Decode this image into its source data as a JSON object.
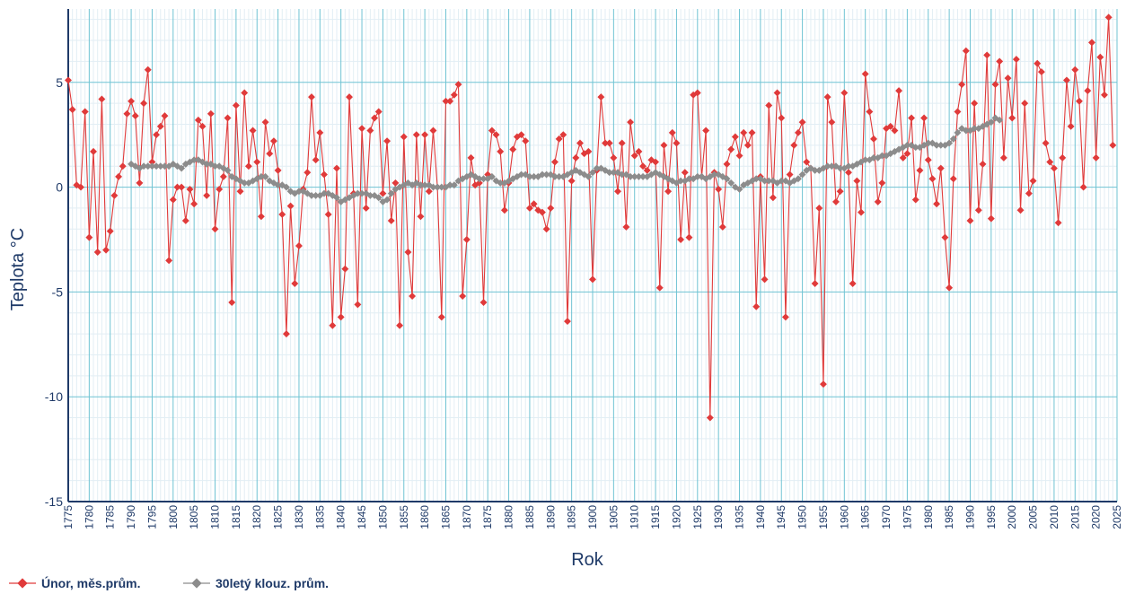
{
  "chart_data": {
    "type": "line",
    "xlabel": "Rok",
    "ylabel": "Teplota °C",
    "xlim": [
      1775,
      2025
    ],
    "ylim": [
      -15,
      8.5
    ],
    "y_ticks": [
      5,
      0,
      -5,
      -10,
      -15
    ],
    "y_tick_labels": [
      "5",
      "0",
      "-5",
      "-10",
      "-15"
    ],
    "x_ticks": [
      1775,
      1780,
      1785,
      1790,
      1795,
      1800,
      1805,
      1810,
      1815,
      1820,
      1825,
      1830,
      1835,
      1840,
      1845,
      1850,
      1855,
      1860,
      1865,
      1870,
      1875,
      1880,
      1885,
      1890,
      1895,
      1900,
      1905,
      1910,
      1915,
      1920,
      1925,
      1930,
      1935,
      1940,
      1945,
      1950,
      1955,
      1960,
      1965,
      1970,
      1975,
      1980,
      1985,
      1990,
      1995,
      2000,
      2005,
      2010,
      2015,
      2020,
      2025
    ],
    "x_tick_labels": [
      "1775",
      "1780",
      "1785",
      "1790",
      "1795",
      "1800",
      "1805",
      "1810",
      "1815",
      "1820",
      "1825",
      "1830",
      "1835",
      "1840",
      "1845",
      "1850",
      "1855",
      "1860",
      "1865",
      "1870",
      "1875",
      "1880",
      "1885",
      "1890",
      "1895",
      "1900",
      "1905",
      "1910",
      "1915",
      "1920",
      "1925",
      "1930",
      "1935",
      "1940",
      "1945",
      "1950",
      "1955",
      "1960",
      "1965",
      "1970",
      "1975",
      "1980",
      "1985",
      "1990",
      "1995",
      "2000",
      "2005",
      "2010",
      "2015",
      "2020",
      "2025"
    ],
    "grid": true,
    "legend_position": "bottom-left",
    "series": [
      {
        "name": "Únor, měs.prům.",
        "color": "#e03a3a",
        "x_start": 1775,
        "values": [
          5.1,
          3.7,
          0.1,
          0.0,
          3.6,
          -2.4,
          1.7,
          -3.1,
          4.2,
          -3.0,
          -2.1,
          -0.4,
          0.5,
          1.0,
          3.5,
          4.1,
          3.4,
          0.2,
          4.0,
          5.6,
          1.2,
          2.5,
          2.9,
          3.4,
          -3.5,
          -0.6,
          0.0,
          0.0,
          -1.6,
          -0.1,
          -0.8,
          3.2,
          2.9,
          -0.4,
          3.5,
          -2.0,
          -0.1,
          0.5,
          3.3,
          -5.5,
          3.9,
          -0.2,
          4.5,
          1.0,
          2.7,
          1.2,
          -1.4,
          3.1,
          1.6,
          2.2,
          0.8,
          -1.3,
          -7.0,
          -0.9,
          -4.6,
          -2.8,
          -0.1,
          0.7,
          4.3,
          1.3,
          2.6,
          0.6,
          -1.3,
          -6.6,
          0.9,
          -6.2,
          -3.9,
          4.3,
          -0.3,
          -5.6,
          2.8,
          -1.0,
          2.7,
          3.3,
          3.6,
          -0.3,
          2.2,
          -1.6,
          0.2,
          -6.6,
          2.4,
          -3.1,
          -5.2,
          2.5,
          -1.4,
          2.5,
          -0.2,
          2.7,
          0.0,
          -6.2,
          4.1,
          4.1,
          4.4,
          4.9,
          -5.2,
          -2.5,
          1.4,
          0.1,
          0.2,
          -5.5,
          0.6,
          2.7,
          2.5,
          1.7,
          -1.1,
          0.2,
          1.8,
          2.4,
          2.5,
          2.2,
          -1.0,
          -0.8,
          -1.1,
          -1.2,
          -2.0,
          -1.0,
          1.2,
          2.3,
          2.5,
          -6.4,
          0.3,
          1.4,
          2.1,
          1.6,
          1.7,
          -4.4,
          0.8,
          4.3,
          2.1,
          2.1,
          1.4,
          -0.2,
          2.1,
          -1.9,
          3.1,
          1.5,
          1.7,
          1.0,
          0.8,
          1.3,
          1.2,
          -4.8,
          2.0,
          -0.2,
          2.6,
          2.1,
          -2.5,
          0.7,
          -2.4,
          4.4,
          4.5,
          0.5,
          2.7,
          -11.0,
          0.7,
          -0.1,
          -1.9,
          1.1,
          1.8,
          2.4,
          1.5,
          2.6,
          2.0,
          2.6,
          -5.7,
          0.5,
          -4.4,
          3.9,
          -0.5,
          4.5,
          3.3,
          -6.2,
          0.6,
          2.0,
          2.6,
          3.1,
          1.2,
          0.9,
          -4.6,
          -1.0,
          -9.4,
          4.3,
          3.1,
          -0.7,
          -0.2,
          4.5,
          0.7,
          -4.6,
          0.3,
          -1.2,
          5.4,
          3.6,
          2.3,
          -0.7,
          0.2,
          2.8,
          2.9,
          2.7,
          4.6,
          1.4,
          1.6,
          3.3,
          -0.6,
          0.8,
          3.3,
          1.3,
          0.4,
          -0.8,
          0.9,
          -2.4,
          -4.8,
          0.4,
          3.6,
          4.9,
          6.5,
          -1.6,
          4.0,
          -1.1,
          1.1,
          6.3,
          -1.5,
          4.9,
          6.0,
          1.4,
          5.2,
          3.3,
          6.1,
          -1.1,
          4.0,
          -0.3,
          0.3,
          5.9,
          5.5,
          2.1,
          1.2,
          0.9,
          -1.7,
          1.4,
          5.1,
          2.9,
          5.6,
          4.1,
          0.0,
          4.6,
          6.9,
          1.4,
          6.2,
          4.4,
          8.1,
          2.0
        ]
      },
      {
        "name": "30letý klouz. prům.",
        "color": "#8c8c8c",
        "x_start": 1790,
        "values": [
          1.1,
          1.0,
          0.9,
          1.0,
          1.0,
          1.0,
          1.0,
          1.0,
          1.0,
          1.0,
          1.1,
          1.0,
          0.9,
          1.1,
          1.2,
          1.3,
          1.3,
          1.2,
          1.1,
          1.1,
          1.0,
          1.0,
          0.9,
          0.8,
          0.5,
          0.4,
          0.3,
          0.2,
          0.2,
          0.3,
          0.4,
          0.5,
          0.5,
          0.3,
          0.2,
          0.1,
          0.1,
          0.0,
          -0.2,
          -0.3,
          -0.2,
          -0.2,
          -0.3,
          -0.4,
          -0.4,
          -0.4,
          -0.3,
          -0.3,
          -0.4,
          -0.5,
          -0.7,
          -0.6,
          -0.5,
          -0.4,
          -0.3,
          -0.3,
          -0.3,
          -0.4,
          -0.4,
          -0.5,
          -0.7,
          -0.6,
          -0.3,
          -0.1,
          0.0,
          0.1,
          0.2,
          0.1,
          0.2,
          0.1,
          0.1,
          0.1,
          0.0,
          0.0,
          0.0,
          0.0,
          0.1,
          0.1,
          0.3,
          0.4,
          0.5,
          0.6,
          0.5,
          0.4,
          0.4,
          0.4,
          0.5,
          0.3,
          0.2,
          0.2,
          0.3,
          0.4,
          0.5,
          0.6,
          0.6,
          0.5,
          0.5,
          0.5,
          0.6,
          0.6,
          0.6,
          0.5,
          0.5,
          0.5,
          0.6,
          0.7,
          0.8,
          0.7,
          0.6,
          0.5,
          0.7,
          0.9,
          0.9,
          0.8,
          0.7,
          0.7,
          0.7,
          0.6,
          0.6,
          0.5,
          0.5,
          0.5,
          0.5,
          0.5,
          0.6,
          0.7,
          0.6,
          0.5,
          0.4,
          0.3,
          0.2,
          0.3,
          0.3,
          0.4,
          0.4,
          0.5,
          0.5,
          0.4,
          0.5,
          0.6,
          0.6,
          0.5,
          0.4,
          0.2,
          0.0,
          -0.1,
          0.1,
          0.2,
          0.3,
          0.4,
          0.4,
          0.3,
          0.3,
          0.3,
          0.2,
          0.3,
          0.3,
          0.2,
          0.3,
          0.4,
          0.6,
          0.8,
          0.9,
          0.8,
          0.8,
          0.9,
          1.0,
          1.0,
          1.0,
          0.9,
          0.9,
          1.0,
          1.0,
          1.1,
          1.2,
          1.3,
          1.3,
          1.4,
          1.4,
          1.5,
          1.5,
          1.6,
          1.7,
          1.8,
          1.9,
          2.0,
          2.0,
          1.9,
          1.9,
          2.0,
          2.1,
          2.1,
          2.0,
          2.0,
          2.0,
          2.1,
          2.3,
          2.6,
          2.8,
          2.7,
          2.7,
          2.8,
          2.8,
          2.9,
          3.0,
          3.1,
          3.3,
          3.2
        ]
      }
    ]
  }
}
